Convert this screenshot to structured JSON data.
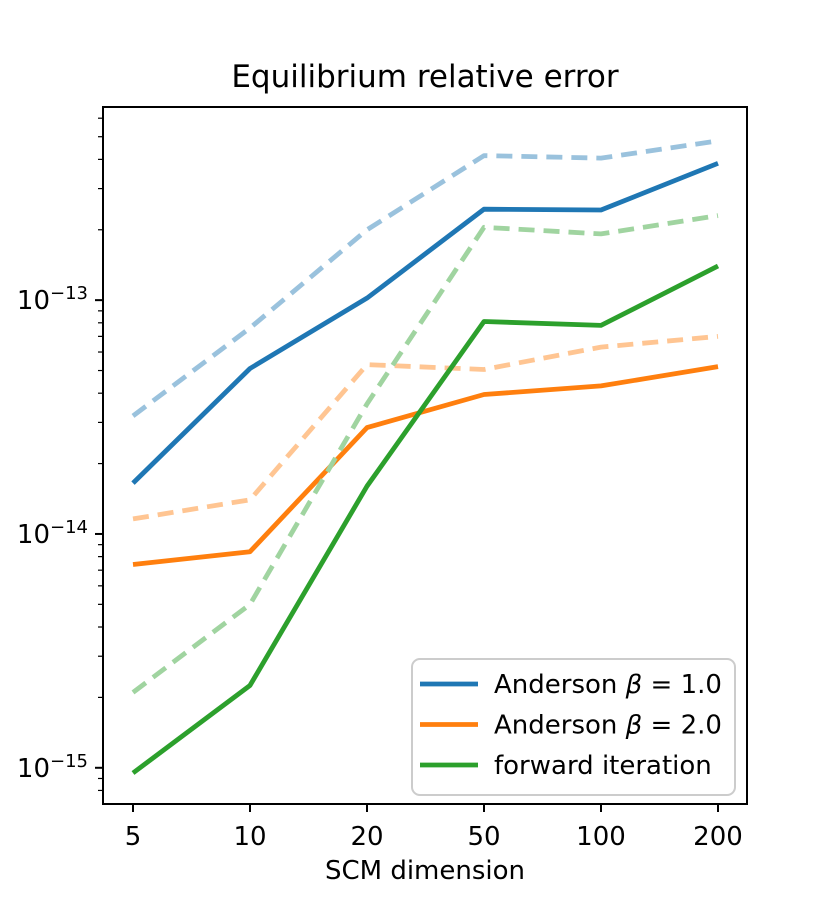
{
  "chart_data": {
    "type": "line",
    "title": "Equilibrium relative error",
    "xlabel": "SCM dimension",
    "ylabel": "",
    "x_scale": "categorical-equal-spacing",
    "y_scale": "log",
    "ylim": [
      7e-16,
      6.7e-13
    ],
    "grid": false,
    "x": [
      5,
      10,
      20,
      50,
      100,
      200
    ],
    "x_tick_labels": [
      "5",
      "10",
      "20",
      "50",
      "100",
      "200"
    ],
    "y_ticks": [
      {
        "value": 1e-13,
        "base": "10",
        "exp": "−13"
      },
      {
        "value": 1e-14,
        "base": "10",
        "exp": "−14"
      },
      {
        "value": 1e-15,
        "base": "10",
        "exp": "−15"
      }
    ],
    "series": [
      {
        "id": "anderson-beta-1.0",
        "legend_label": "Anderson β = 1.0",
        "style": "solid",
        "color": "#1f77b4",
        "values": [
          1.65e-14,
          5.1e-14,
          1.02e-13,
          2.45e-13,
          2.43e-13,
          3.85e-13
        ]
      },
      {
        "id": "anderson-beta-1.0-dashed",
        "legend_label": null,
        "style": "dashed",
        "color": "#9ac2dd",
        "values": [
          3.2e-14,
          7.6e-14,
          2e-13,
          4.15e-13,
          4.05e-13,
          4.8e-13
        ]
      },
      {
        "id": "anderson-beta-2.0",
        "legend_label": "Anderson β = 2.0",
        "style": "solid",
        "color": "#ff7f0e",
        "values": [
          7.4e-15,
          8.4e-15,
          2.85e-14,
          3.95e-14,
          4.3e-14,
          5.2e-14
        ]
      },
      {
        "id": "anderson-beta-2.0-dashed",
        "legend_label": null,
        "style": "dashed",
        "color": "#ffc592",
        "values": [
          1.16e-14,
          1.4e-14,
          5.3e-14,
          5.05e-14,
          6.3e-14,
          7e-14
        ]
      },
      {
        "id": "forward-iteration",
        "legend_label": "forward iteration",
        "style": "solid",
        "color": "#2ca02c",
        "values": [
          9.5e-16,
          2.25e-15,
          1.6e-14,
          8.1e-14,
          7.8e-14,
          1.4e-13
        ]
      },
      {
        "id": "forward-iteration-dashed",
        "legend_label": null,
        "style": "dashed",
        "color": "#a0d4a0",
        "values": [
          2.1e-15,
          5e-15,
          3.6e-14,
          2.05e-13,
          1.92e-13,
          2.3e-13
        ]
      }
    ],
    "legend": {
      "location": "lower right",
      "entries": [
        "Anderson β = 1.0",
        "Anderson β = 2.0",
        "forward iteration"
      ]
    }
  }
}
